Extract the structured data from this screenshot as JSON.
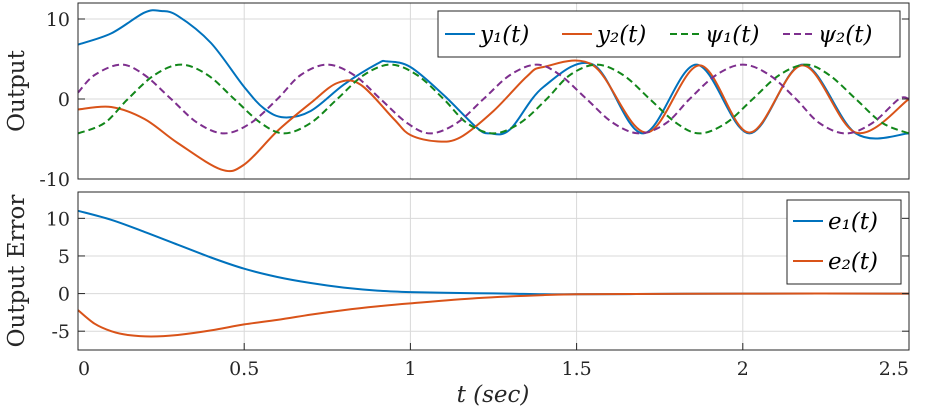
{
  "chart_data": [
    {
      "type": "line",
      "title": "",
      "xlabel": "",
      "ylabel": "Output",
      "xlim": [
        0,
        2.5
      ],
      "ylim": [
        -10,
        12
      ],
      "yticks": [
        10,
        0,
        -10
      ],
      "ytick_labels": [
        "10",
        "0",
        "-10"
      ],
      "grid": true,
      "legend_position": "top-right",
      "legend_orientation": "horizontal",
      "series": [
        {
          "name": "y₁(t)",
          "color": "#0072BD",
          "style": "solid",
          "x": [
            0,
            0.1,
            0.2,
            0.25,
            0.3,
            0.4,
            0.5,
            0.56,
            0.62,
            0.7,
            0.8,
            0.9,
            0.93,
            1.0,
            1.1,
            1.2,
            1.24,
            1.3,
            1.4,
            1.55,
            1.7,
            1.86,
            2.02,
            2.18,
            2.34,
            2.5
          ],
          "y": [
            6.8,
            8.2,
            10.8,
            11.0,
            10.4,
            7.0,
            1.5,
            -1.2,
            -2.3,
            -1.5,
            1.8,
            4.4,
            4.7,
            4.0,
            0.5,
            -3.6,
            -4.3,
            -3.8,
            1.5,
            4.3,
            -4.3,
            4.3,
            -4.3,
            4.3,
            -4.3,
            -4.3
          ]
        },
        {
          "name": "y₂(t)",
          "color": "#D95319",
          "style": "solid",
          "x": [
            0,
            0.1,
            0.2,
            0.3,
            0.43,
            0.5,
            0.6,
            0.7,
            0.78,
            0.85,
            0.95,
            1.0,
            1.08,
            1.15,
            1.25,
            1.35,
            1.4,
            1.55,
            1.71,
            1.87,
            2.02,
            2.18,
            2.34,
            2.5
          ],
          "y": [
            -1.3,
            -1.0,
            -2.5,
            -5.5,
            -8.8,
            -8.2,
            -4.0,
            -0.5,
            2.0,
            1.8,
            -2.5,
            -4.5,
            -5.3,
            -4.8,
            -1.5,
            2.8,
            4.0,
            4.2,
            -4.2,
            4.2,
            -4.2,
            4.2,
            -4.2,
            0.0
          ]
        },
        {
          "name": "ψ₁(t)",
          "color": "#12871A",
          "style": "dashed",
          "x": [
            0,
            0.08,
            0.15,
            0.23,
            0.31,
            0.39,
            0.47,
            0.55,
            0.62,
            0.7,
            0.78,
            0.86,
            0.94,
            1.02,
            1.1,
            1.17,
            1.25,
            1.33,
            1.41,
            1.48,
            1.56,
            1.64,
            1.72,
            1.8,
            1.87,
            1.95,
            2.03,
            2.11,
            2.19,
            2.26,
            2.34,
            2.42,
            2.5
          ],
          "y": [
            -4.3,
            -3.0,
            0.0,
            3.0,
            4.3,
            3.0,
            0.0,
            -3.0,
            -4.3,
            -3.0,
            0.0,
            3.0,
            4.3,
            3.0,
            0.0,
            -3.0,
            -4.3,
            -3.0,
            0.0,
            3.0,
            4.3,
            3.0,
            0.0,
            -3.0,
            -4.3,
            -3.0,
            0.0,
            3.0,
            4.3,
            3.0,
            0.0,
            -3.0,
            -4.3
          ]
        },
        {
          "name": "ψ₂(t)",
          "color": "#7E2F8E",
          "style": "dashed",
          "x": [
            0,
            0.05,
            0.13,
            0.2,
            0.28,
            0.36,
            0.44,
            0.52,
            0.6,
            0.67,
            0.75,
            0.83,
            0.91,
            0.99,
            1.06,
            1.14,
            1.22,
            1.3,
            1.38,
            1.45,
            1.53,
            1.61,
            1.69,
            1.77,
            1.84,
            1.92,
            2.0,
            2.08,
            2.16,
            2.23,
            2.31,
            2.39,
            2.47,
            2.5
          ],
          "y": [
            0.8,
            3.0,
            4.3,
            3.0,
            0.0,
            -3.0,
            -4.3,
            -3.0,
            0.0,
            3.0,
            4.3,
            3.0,
            0.0,
            -3.0,
            -4.3,
            -3.0,
            0.0,
            3.0,
            4.3,
            3.0,
            0.0,
            -3.0,
            -4.3,
            -3.0,
            0.0,
            3.0,
            4.3,
            3.0,
            0.0,
            -3.0,
            -4.3,
            -3.0,
            0.0,
            0.0
          ]
        }
      ]
    },
    {
      "type": "line",
      "title": "",
      "xlabel": "t (sec)",
      "ylabel": "Output Error",
      "xlim": [
        0,
        2.5
      ],
      "ylim": [
        -7.5,
        13.5
      ],
      "xticks": [
        0,
        0.5,
        1,
        1.5,
        2,
        2.5
      ],
      "xtick_labels": [
        "0",
        "0.5",
        "1",
        "1.5",
        "2",
        "2.5"
      ],
      "yticks": [
        10,
        5,
        0,
        -5
      ],
      "ytick_labels": [
        "10",
        "5",
        "0",
        "-5"
      ],
      "grid": true,
      "legend_position": "top-right",
      "legend_orientation": "vertical",
      "series": [
        {
          "name": "e₁(t)",
          "color": "#0072BD",
          "style": "solid",
          "x": [
            0,
            0.1,
            0.2,
            0.3,
            0.4,
            0.5,
            0.6,
            0.7,
            0.8,
            0.9,
            1.0,
            1.1,
            1.2,
            1.3,
            1.4,
            1.5,
            1.75,
            2.0,
            2.5
          ],
          "y": [
            11.0,
            9.8,
            8.2,
            6.5,
            4.8,
            3.3,
            2.2,
            1.4,
            0.8,
            0.4,
            0.2,
            0.1,
            0.05,
            0.0,
            -0.1,
            -0.1,
            -0.05,
            0.0,
            0.0
          ]
        },
        {
          "name": "e₂(t)",
          "color": "#D95319",
          "style": "solid",
          "x": [
            0,
            0.05,
            0.1,
            0.15,
            0.22,
            0.3,
            0.4,
            0.5,
            0.6,
            0.7,
            0.8,
            0.9,
            1.0,
            1.2,
            1.4,
            1.5,
            1.75,
            2.0,
            2.5
          ],
          "y": [
            -2.2,
            -4.0,
            -5.0,
            -5.5,
            -5.7,
            -5.5,
            -4.9,
            -4.1,
            -3.5,
            -2.8,
            -2.2,
            -1.7,
            -1.3,
            -0.6,
            -0.2,
            -0.1,
            -0.05,
            0.0,
            0.0
          ]
        }
      ]
    }
  ]
}
